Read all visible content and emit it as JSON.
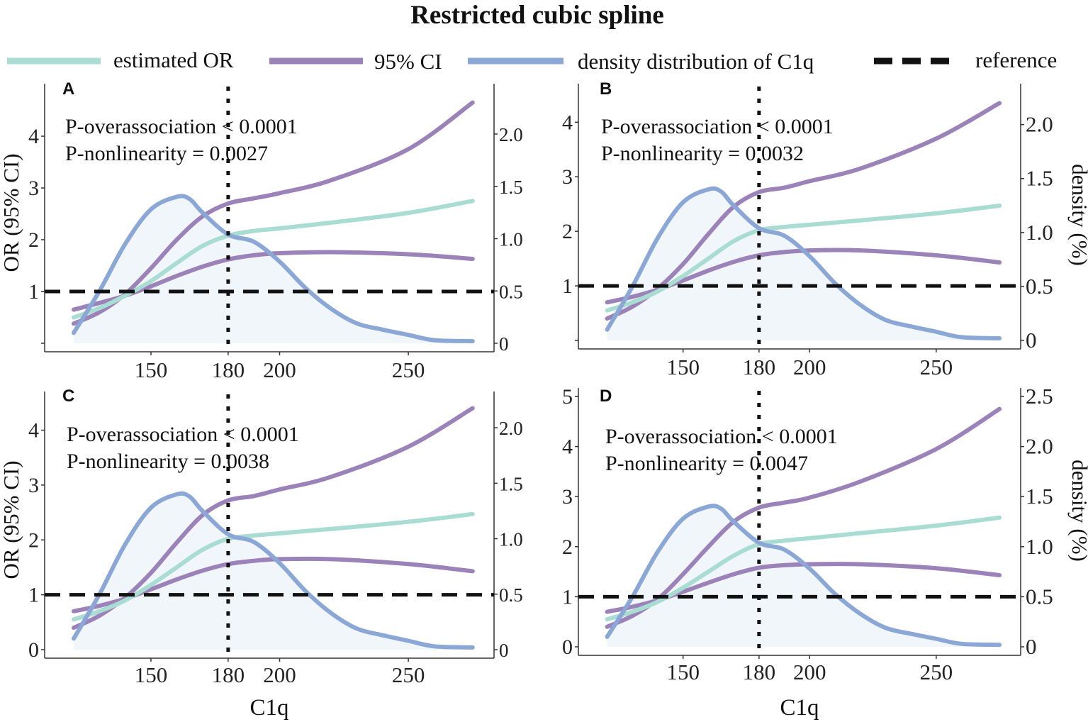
{
  "title": "Restricted cubic spline",
  "legend": {
    "items": [
      {
        "label": "estimated OR",
        "color": "#a9dcd3",
        "style": "solid"
      },
      {
        "label": "95% CI",
        "color": "#9b82b8",
        "style": "solid"
      },
      {
        "label": "density distribution of C1q",
        "color": "#8aa7d6",
        "style": "solid"
      },
      {
        "label": "reference",
        "color": "#111111",
        "style": "dashed"
      }
    ]
  },
  "colors": {
    "estimate": "#a9dcd3",
    "ci": "#9b82b8",
    "density": "#8aa7d6",
    "density_fill": "#f1f6fa",
    "reference": "#111111",
    "axis": "#333333"
  },
  "chart_data": [
    {
      "panel": "A",
      "type": "line",
      "title": "",
      "xlabel": "",
      "ylabel": "OR (95% CI)",
      "y2label": "",
      "xlim": [
        112,
        280
      ],
      "ylim": [
        0,
        4.85
      ],
      "y2lim": [
        0,
        2.4
      ],
      "xticks": [
        150,
        180,
        200,
        250
      ],
      "yticks": [
        1,
        2,
        3,
        4
      ],
      "y2ticks": [
        0,
        0.5,
        1.0,
        1.5,
        2.0
      ],
      "y2ticklabels": [
        "0",
        "0.5",
        "1.0",
        "1.5",
        "2.0"
      ],
      "bottom_tick_visible": true,
      "reference_y": 1,
      "vline_x": 180,
      "annotations": [
        "P-overassociation < 0.0001",
        "P-nonlinearity = 0.0027"
      ],
      "series": [
        {
          "name": "estimated OR",
          "x": [
            120,
            130,
            140,
            150,
            160,
            170,
            180,
            190,
            200,
            220,
            250,
            275
          ],
          "values": [
            0.5,
            0.68,
            0.92,
            1.2,
            1.55,
            1.88,
            2.08,
            2.17,
            2.22,
            2.33,
            2.52,
            2.75
          ]
        },
        {
          "name": "95% CI upper",
          "x": [
            120,
            130,
            140,
            150,
            160,
            170,
            180,
            190,
            200,
            220,
            250,
            275
          ],
          "values": [
            0.38,
            0.6,
            0.95,
            1.45,
            2.0,
            2.45,
            2.7,
            2.8,
            2.9,
            3.15,
            3.75,
            4.65
          ]
        },
        {
          "name": "95% CI lower",
          "x": [
            120,
            130,
            140,
            150,
            160,
            170,
            180,
            190,
            200,
            220,
            250,
            275
          ],
          "values": [
            0.65,
            0.78,
            0.92,
            1.1,
            1.3,
            1.48,
            1.62,
            1.7,
            1.74,
            1.76,
            1.72,
            1.63
          ]
        },
        {
          "name": "density distribution of C1q",
          "x": [
            120,
            130,
            140,
            150,
            160,
            165,
            170,
            180,
            190,
            200,
            210,
            220,
            230,
            240,
            250,
            260,
            275
          ],
          "values": [
            0.1,
            0.5,
            0.95,
            1.28,
            1.4,
            1.38,
            1.25,
            1.04,
            0.97,
            0.78,
            0.53,
            0.33,
            0.19,
            0.13,
            0.08,
            0.03,
            0.02
          ]
        }
      ]
    },
    {
      "panel": "B",
      "type": "line",
      "title": "",
      "xlabel": "",
      "ylabel": "",
      "y2label": "density (%)",
      "xlim": [
        112,
        280
      ],
      "ylim": [
        0,
        4.55
      ],
      "y2lim": [
        0,
        2.3
      ],
      "xticks": [
        150,
        180,
        200,
        250
      ],
      "yticks": [
        1,
        2,
        3,
        4
      ],
      "y2ticks": [
        0,
        0.5,
        1.0,
        1.5,
        2.0
      ],
      "y2ticklabels": [
        "0",
        "0.5",
        "1.0",
        "1.5",
        "2.0"
      ],
      "bottom_tick_visible": true,
      "reference_y": 1,
      "vline_x": 180,
      "annotations": [
        "P-overassociation < 0.0001",
        "P-nonlinearity = 0.0032"
      ],
      "series": [
        {
          "name": "estimated OR",
          "x": [
            120,
            130,
            140,
            150,
            160,
            170,
            180,
            190,
            200,
            220,
            250,
            275
          ],
          "values": [
            0.55,
            0.7,
            0.9,
            1.18,
            1.5,
            1.82,
            2.02,
            2.08,
            2.12,
            2.2,
            2.33,
            2.47
          ]
        },
        {
          "name": "95% CI upper",
          "x": [
            120,
            130,
            140,
            150,
            160,
            170,
            180,
            190,
            200,
            220,
            250,
            275
          ],
          "values": [
            0.4,
            0.62,
            0.95,
            1.4,
            1.95,
            2.45,
            2.72,
            2.8,
            2.92,
            3.15,
            3.7,
            4.35
          ]
        },
        {
          "name": "95% CI lower",
          "x": [
            120,
            130,
            140,
            150,
            160,
            170,
            180,
            190,
            200,
            220,
            250,
            275
          ],
          "values": [
            0.7,
            0.8,
            0.93,
            1.1,
            1.28,
            1.44,
            1.56,
            1.62,
            1.65,
            1.65,
            1.56,
            1.43
          ]
        },
        {
          "name": "density distribution of C1q",
          "x": [
            120,
            130,
            140,
            150,
            160,
            165,
            170,
            180,
            190,
            200,
            210,
            220,
            230,
            240,
            250,
            260,
            275
          ],
          "values": [
            0.1,
            0.5,
            0.95,
            1.28,
            1.4,
            1.38,
            1.25,
            1.04,
            0.97,
            0.78,
            0.53,
            0.33,
            0.19,
            0.13,
            0.08,
            0.03,
            0.02
          ]
        }
      ]
    },
    {
      "panel": "C",
      "type": "line",
      "title": "",
      "xlabel": "C1q",
      "ylabel": "OR (95% CI)",
      "y2label": "",
      "xlim": [
        112,
        280
      ],
      "ylim": [
        0,
        4.55
      ],
      "y2lim": [
        0,
        2.25
      ],
      "xticks": [
        150,
        180,
        200,
        250
      ],
      "yticks": [
        0,
        1,
        2,
        3,
        4
      ],
      "y2ticks": [
        0,
        0.5,
        1.0,
        1.5,
        2.0
      ],
      "y2ticklabels": [
        "0",
        "0.5",
        "1.0",
        "1.5",
        "2.0"
      ],
      "bottom_tick_visible": true,
      "reference_y": 1,
      "vline_x": 180,
      "annotations": [
        "P-overassociation < 0.0001",
        "P-nonlinearity = 0.0038"
      ],
      "series": [
        {
          "name": "estimated OR",
          "x": [
            120,
            130,
            140,
            150,
            160,
            170,
            180,
            190,
            200,
            220,
            250,
            275
          ],
          "values": [
            0.55,
            0.7,
            0.9,
            1.18,
            1.5,
            1.82,
            2.02,
            2.08,
            2.12,
            2.2,
            2.33,
            2.47
          ]
        },
        {
          "name": "95% CI upper",
          "x": [
            120,
            130,
            140,
            150,
            160,
            170,
            180,
            190,
            200,
            220,
            250,
            275
          ],
          "values": [
            0.4,
            0.62,
            0.95,
            1.4,
            1.95,
            2.45,
            2.72,
            2.8,
            2.92,
            3.15,
            3.7,
            4.4
          ]
        },
        {
          "name": "95% CI lower",
          "x": [
            120,
            130,
            140,
            150,
            160,
            170,
            180,
            190,
            200,
            220,
            250,
            275
          ],
          "values": [
            0.7,
            0.8,
            0.93,
            1.1,
            1.28,
            1.44,
            1.56,
            1.62,
            1.65,
            1.65,
            1.56,
            1.43
          ]
        },
        {
          "name": "density distribution of C1q",
          "x": [
            120,
            130,
            140,
            150,
            160,
            165,
            170,
            180,
            190,
            200,
            210,
            220,
            230,
            240,
            250,
            260,
            275
          ],
          "values": [
            0.1,
            0.5,
            0.95,
            1.28,
            1.4,
            1.38,
            1.25,
            1.04,
            0.97,
            0.78,
            0.53,
            0.33,
            0.19,
            0.13,
            0.08,
            0.03,
            0.02
          ]
        }
      ]
    },
    {
      "panel": "D",
      "type": "line",
      "title": "",
      "xlabel": "C1q",
      "ylabel": "",
      "y2label": "density (%)",
      "xlim": [
        112,
        280
      ],
      "ylim": [
        0,
        5.0
      ],
      "y2lim": [
        0,
        2.5
      ],
      "xticks": [
        150,
        180,
        200,
        250
      ],
      "yticks": [
        0,
        1,
        2,
        3,
        4,
        5
      ],
      "y2ticks": [
        0,
        0.5,
        1.0,
        1.5,
        2.0,
        2.5
      ],
      "y2ticklabels": [
        "0",
        "0.5",
        "1.0",
        "1.5",
        "2.0",
        "2.5"
      ],
      "bottom_tick_visible": true,
      "reference_y": 1,
      "vline_x": 180,
      "annotations": [
        "P-overassociation < 0.0001",
        "P-nonlinearity = 0.0047"
      ],
      "series": [
        {
          "name": "estimated OR",
          "x": [
            120,
            130,
            140,
            150,
            160,
            170,
            180,
            190,
            200,
            220,
            250,
            275
          ],
          "values": [
            0.55,
            0.7,
            0.9,
            1.18,
            1.5,
            1.82,
            2.05,
            2.12,
            2.17,
            2.27,
            2.42,
            2.58
          ]
        },
        {
          "name": "95% CI upper",
          "x": [
            120,
            130,
            140,
            150,
            160,
            170,
            180,
            190,
            200,
            220,
            250,
            275
          ],
          "values": [
            0.4,
            0.62,
            0.95,
            1.45,
            2.0,
            2.5,
            2.78,
            2.88,
            2.98,
            3.3,
            3.95,
            4.75
          ]
        },
        {
          "name": "95% CI lower",
          "x": [
            120,
            130,
            140,
            150,
            160,
            170,
            180,
            190,
            200,
            220,
            250,
            275
          ],
          "values": [
            0.7,
            0.8,
            0.93,
            1.1,
            1.28,
            1.45,
            1.58,
            1.63,
            1.65,
            1.65,
            1.57,
            1.43
          ]
        },
        {
          "name": "density distribution of C1q",
          "x": [
            120,
            130,
            140,
            150,
            160,
            165,
            170,
            180,
            190,
            200,
            210,
            220,
            230,
            240,
            250,
            260,
            275
          ],
          "values": [
            0.1,
            0.5,
            0.95,
            1.28,
            1.4,
            1.38,
            1.25,
            1.04,
            0.97,
            0.78,
            0.53,
            0.33,
            0.19,
            0.13,
            0.08,
            0.03,
            0.02
          ]
        }
      ]
    }
  ]
}
